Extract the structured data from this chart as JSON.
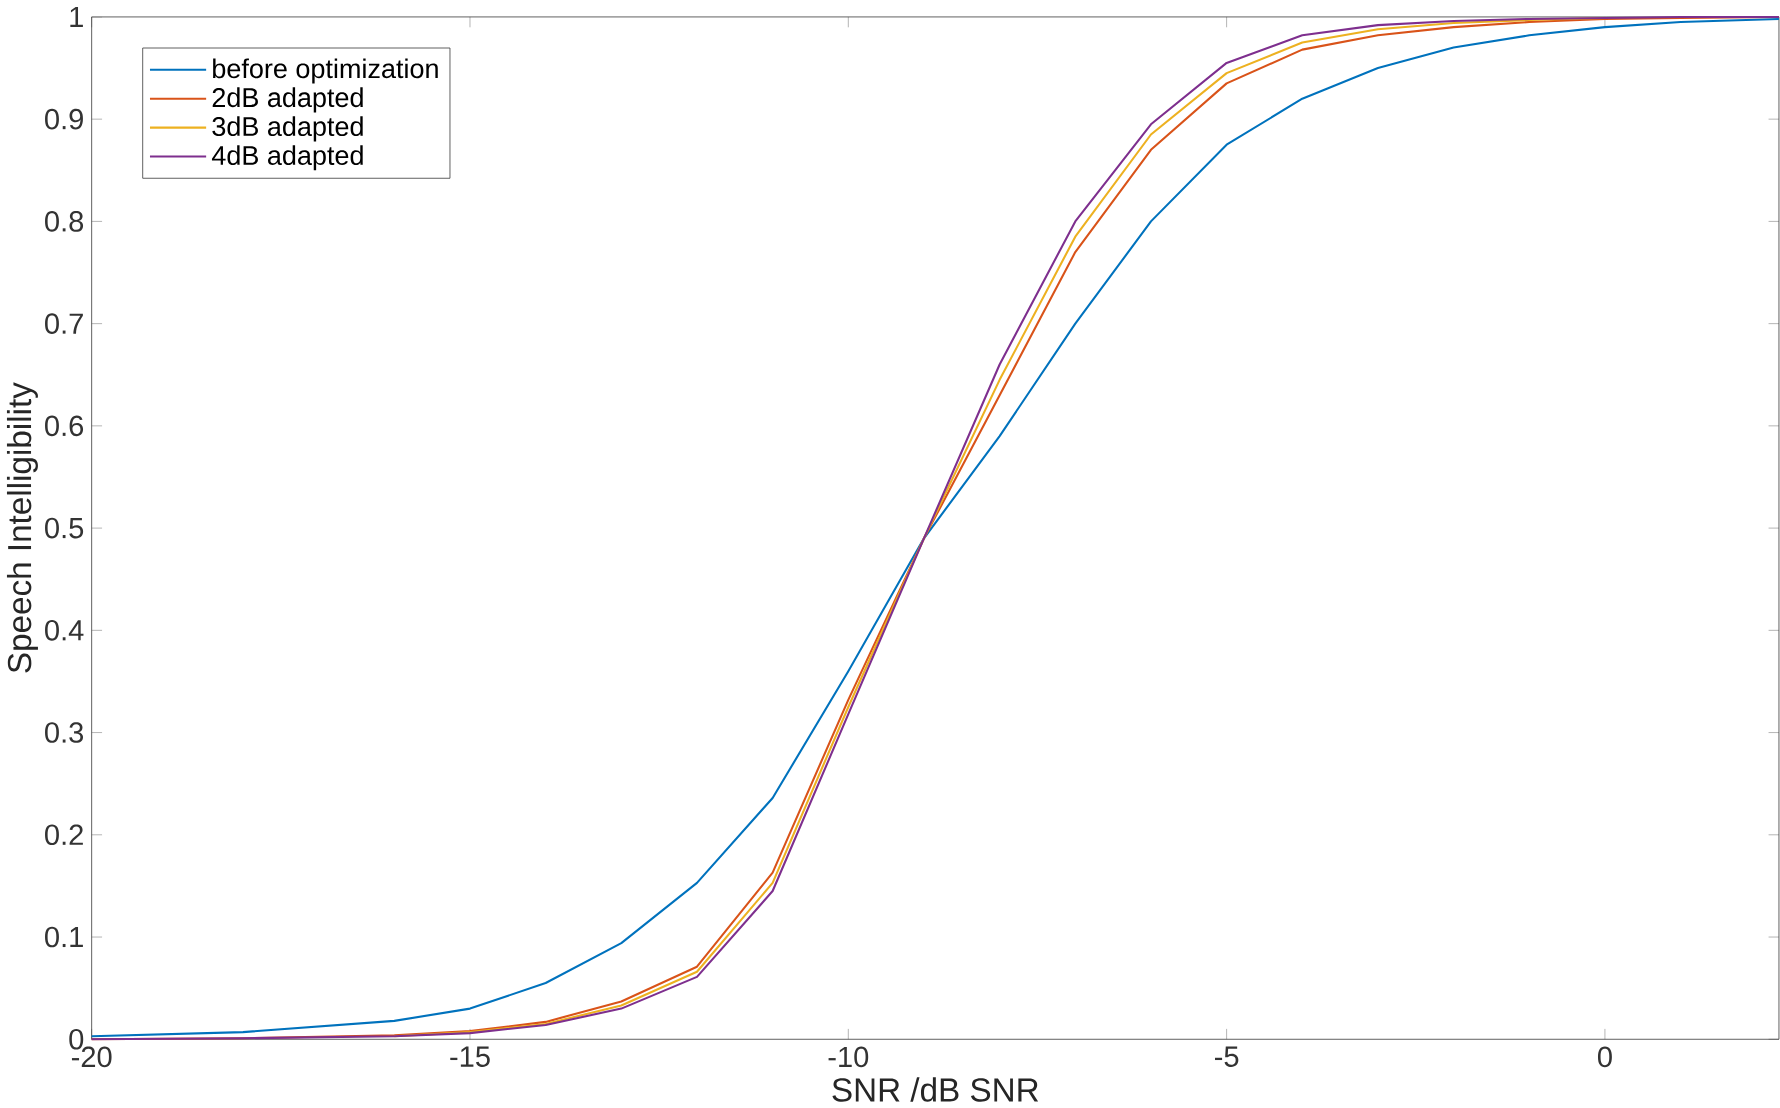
{
  "chart_data": {
    "type": "line",
    "xlabel": "SNR /dB SNR",
    "ylabel": "Speech Intelligibility",
    "x": [
      -20,
      -18,
      -16,
      -15,
      -14,
      -13,
      -12,
      -11,
      -10,
      -9,
      -8,
      -7,
      -6,
      -5,
      -4,
      -3,
      -2,
      -1,
      0,
      1,
      2.3
    ],
    "series": [
      {
        "name": "before optimization",
        "color": "#0072bd",
        "values": [
          0.003,
          0.007,
          0.018,
          0.03,
          0.055,
          0.094,
          0.153,
          0.236,
          0.36,
          0.49,
          0.59,
          0.7,
          0.8,
          0.875,
          0.92,
          0.95,
          0.97,
          0.982,
          0.99,
          0.995,
          0.998
        ]
      },
      {
        "name": "2dB adapted",
        "color": "#d95319",
        "values": [
          0,
          0.001,
          0.004,
          0.008,
          0.017,
          0.037,
          0.071,
          0.163,
          0.332,
          0.49,
          0.63,
          0.77,
          0.87,
          0.935,
          0.968,
          0.982,
          0.99,
          0.995,
          0.998,
          0.999,
          1.0
        ]
      },
      {
        "name": "3dB adapted",
        "color": "#edb120",
        "values": [
          null,
          null,
          0.003,
          0.007,
          0.015,
          0.033,
          0.066,
          0.153,
          0.325,
          0.49,
          0.645,
          0.785,
          0.885,
          0.945,
          0.975,
          0.988,
          0.994,
          0.997,
          0.999,
          null,
          null
        ]
      },
      {
        "name": "4dB adapted",
        "color": "#7e2f8e",
        "values": [
          0,
          0.001,
          0.003,
          0.006,
          0.014,
          0.03,
          0.061,
          0.145,
          0.318,
          0.49,
          0.66,
          0.8,
          0.895,
          0.955,
          0.982,
          0.992,
          0.996,
          0.998,
          0.999,
          1.0,
          1.0
        ]
      }
    ],
    "xlim": [
      -20,
      2.3
    ],
    "ylim": [
      0,
      1
    ],
    "xticks": [
      -20,
      -15,
      -10,
      -5,
      0
    ],
    "yticks": [
      0,
      0.1,
      0.2,
      0.3,
      0.4,
      0.5,
      0.6,
      0.7,
      0.8,
      0.9,
      1
    ],
    "grid": false,
    "legend": "top left",
    "line_style": "solid",
    "marker": "none"
  }
}
